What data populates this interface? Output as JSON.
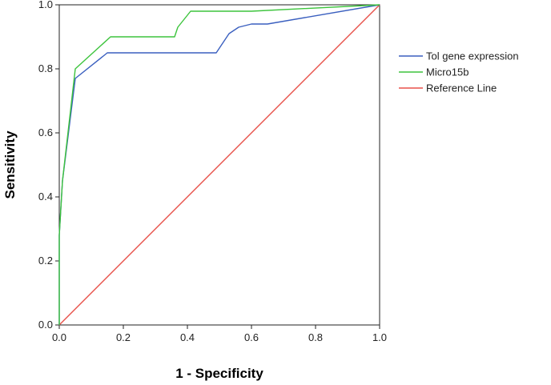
{
  "chart_data": {
    "type": "line",
    "title": "",
    "xlabel": "1 - Specificity",
    "ylabel": "Sensitivity",
    "xlim": [
      0,
      1
    ],
    "ylim": [
      0,
      1
    ],
    "xticks": [
      "0.0",
      "0.2",
      "0.4",
      "0.6",
      "0.8",
      "1.0"
    ],
    "yticks": [
      "0.0",
      "0.2",
      "0.4",
      "0.6",
      "0.8",
      "1.0"
    ],
    "grid": false,
    "legend_position": "right",
    "series": [
      {
        "name": "Tol gene expression",
        "color": "#3a5fbf",
        "points": [
          [
            0,
            0
          ],
          [
            0,
            0.28
          ],
          [
            0.01,
            0.45
          ],
          [
            0.05,
            0.77
          ],
          [
            0.15,
            0.85
          ],
          [
            0.49,
            0.85
          ],
          [
            0.53,
            0.91
          ],
          [
            0.56,
            0.93
          ],
          [
            0.6,
            0.94
          ],
          [
            0.65,
            0.94
          ],
          [
            1,
            1
          ]
        ]
      },
      {
        "name": "Micro15b",
        "color": "#3dc43d",
        "points": [
          [
            0,
            0
          ],
          [
            0,
            0.28
          ],
          [
            0.01,
            0.45
          ],
          [
            0.05,
            0.8
          ],
          [
            0.16,
            0.9
          ],
          [
            0.36,
            0.9
          ],
          [
            0.37,
            0.93
          ],
          [
            0.41,
            0.98
          ],
          [
            0.6,
            0.98
          ],
          [
            1,
            1
          ]
        ]
      },
      {
        "name": "Reference Line",
        "color": "#e8514a",
        "points": [
          [
            0,
            0
          ],
          [
            1,
            1
          ]
        ]
      }
    ]
  }
}
